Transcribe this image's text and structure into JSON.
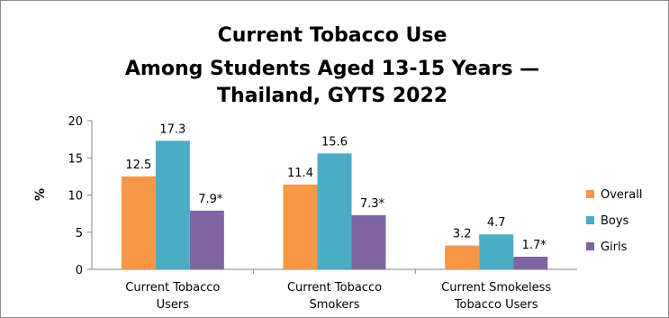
{
  "chart_data": {
    "type": "bar",
    "title": [
      "Current Tobacco Use",
      "Among Students Aged 13-15 Years —",
      "Thailand, GYTS 2022"
    ],
    "ylabel": "%",
    "xlabel": "",
    "ylim": [
      0,
      20
    ],
    "yticks": [
      0,
      5,
      10,
      15,
      20
    ],
    "categories": [
      [
        "Current Tobacco",
        "Users"
      ],
      [
        "Current Tobacco",
        "Smokers"
      ],
      [
        "Current Smokeless",
        "Tobacco Users"
      ]
    ],
    "series": [
      {
        "name": "Overall",
        "color": "#f79646",
        "values": [
          12.5,
          11.4,
          3.2
        ],
        "labels": [
          "12.5",
          "11.4",
          "3.2"
        ]
      },
      {
        "name": "Boys",
        "color": "#4bacc6",
        "values": [
          17.3,
          15.6,
          4.7
        ],
        "labels": [
          "17.3",
          "15.6",
          "4.7"
        ]
      },
      {
        "name": "Girls",
        "color": "#8064a2",
        "values": [
          7.9,
          7.3,
          1.7
        ],
        "labels": [
          "7.9*",
          "7.3*",
          "1.7*"
        ]
      }
    ],
    "legend": "right",
    "grid": false
  }
}
